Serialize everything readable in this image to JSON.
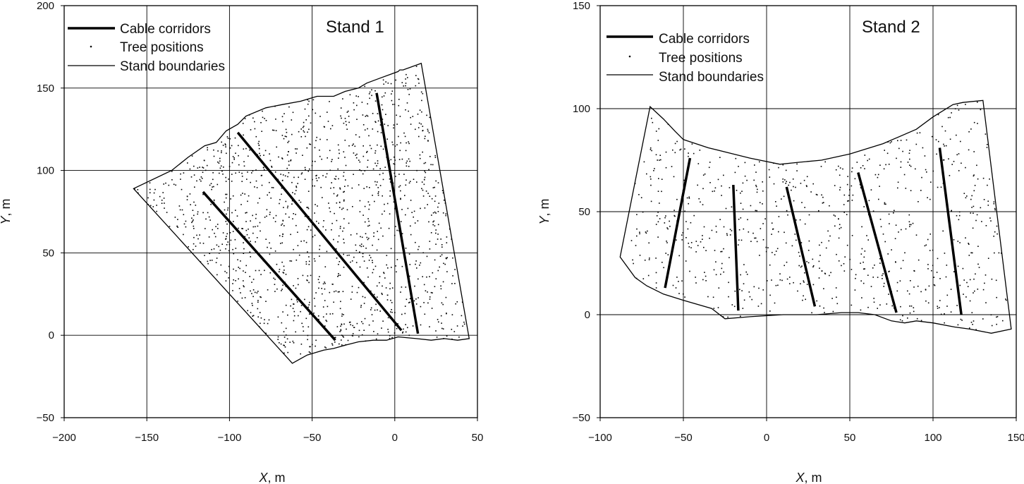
{
  "chart_data": [
    {
      "type": "scatter",
      "title": "Stand 1",
      "xlabel": "X, m",
      "ylabel": "Y, m",
      "xlim": [
        -200,
        50
      ],
      "ylim": [
        -50,
        200
      ],
      "xticks": [
        -200,
        -150,
        -100,
        -50,
        0,
        50
      ],
      "yticks": [
        -50,
        0,
        50,
        100,
        150,
        200
      ],
      "grid": true,
      "legend_position": "top-left",
      "legend": [
        "Cable corridors",
        "Tree positions",
        "Stand boundaries"
      ],
      "series": [
        {
          "name": "Stand boundaries",
          "kind": "polygon",
          "points": [
            [
              -158,
              89
            ],
            [
              -135,
              100
            ],
            [
              -125,
              108
            ],
            [
              -115,
              115
            ],
            [
              -108,
              117
            ],
            [
              -102,
              124
            ],
            [
              -95,
              128
            ],
            [
              -90,
              133
            ],
            [
              -78,
              138
            ],
            [
              -68,
              140
            ],
            [
              -57,
              142
            ],
            [
              -47,
              145
            ],
            [
              -37,
              145
            ],
            [
              -30,
              148
            ],
            [
              -22,
              150
            ],
            [
              -17,
              153
            ],
            [
              -9,
              156
            ],
            [
              2,
              160
            ],
            [
              3,
              161
            ],
            [
              5,
              161
            ],
            [
              16,
              165
            ],
            [
              45,
              -2
            ],
            [
              38,
              -3
            ],
            [
              30,
              -2
            ],
            [
              22,
              -3
            ],
            [
              13,
              -2
            ],
            [
              2,
              -1
            ],
            [
              -5,
              -3
            ],
            [
              -13,
              -3
            ],
            [
              -22,
              -4
            ],
            [
              -30,
              -6
            ],
            [
              -37,
              -8
            ],
            [
              -43,
              -9
            ],
            [
              -53,
              -12
            ],
            [
              -62,
              -17
            ]
          ]
        },
        {
          "name": "Cable corridors",
          "kind": "segments",
          "segments": [
            [
              [
                -116,
                87
              ],
              [
                -36,
                -3
              ]
            ],
            [
              [
                -95,
                123
              ],
              [
                4,
                3
              ]
            ],
            [
              [
                -11,
                147
              ],
              [
                14,
                1
              ]
            ]
          ]
        },
        {
          "name": "Tree positions",
          "kind": "points",
          "count": 1400,
          "region": "distributed throughout the stand boundary"
        }
      ]
    },
    {
      "type": "scatter",
      "title": "Stand 2",
      "xlabel": "X, m",
      "ylabel": "Y, m",
      "xlim": [
        -100,
        150
      ],
      "ylim": [
        -50,
        150
      ],
      "xticks": [
        -100,
        -50,
        0,
        50,
        100,
        150
      ],
      "yticks": [
        -50,
        0,
        50,
        100,
        150
      ],
      "grid": true,
      "legend_position": "top-left",
      "legend": [
        "Cable corridors",
        "Tree positions",
        "Stand boundaries"
      ],
      "series": [
        {
          "name": "Stand boundaries",
          "kind": "polygon",
          "points": [
            [
              -88,
              28
            ],
            [
              -79,
              18
            ],
            [
              -72,
              14
            ],
            [
              -62,
              10
            ],
            [
              -50,
              7
            ],
            [
              -33,
              3
            ],
            [
              -25,
              -2
            ],
            [
              -10,
              -1
            ],
            [
              10,
              0
            ],
            [
              30,
              0
            ],
            [
              45,
              1
            ],
            [
              55,
              1
            ],
            [
              65,
              0
            ],
            [
              75,
              -3
            ],
            [
              83,
              -4
            ],
            [
              90,
              -3
            ],
            [
              100,
              -4
            ],
            [
              113,
              -6
            ],
            [
              122,
              -7
            ],
            [
              135,
              -9
            ],
            [
              147,
              -7
            ],
            [
              130,
              104
            ],
            [
              118,
              103
            ],
            [
              112,
              102
            ],
            [
              100,
              96
            ],
            [
              90,
              90
            ],
            [
              70,
              83
            ],
            [
              50,
              78
            ],
            [
              33,
              75
            ],
            [
              20,
              74
            ],
            [
              8,
              73
            ],
            [
              -10,
              76
            ],
            [
              -20,
              78
            ],
            [
              -35,
              81
            ],
            [
              -50,
              85
            ],
            [
              -55,
              89
            ],
            [
              -62,
              95
            ],
            [
              -70,
              101
            ]
          ]
        },
        {
          "name": "Cable corridors",
          "kind": "segments",
          "segments": [
            [
              [
                -61,
                13
              ],
              [
                -46,
                76
              ]
            ],
            [
              [
                -20,
                63
              ],
              [
                -17,
                2
              ]
            ],
            [
              [
                12,
                62
              ],
              [
                29,
                4
              ]
            ],
            [
              [
                55,
                69
              ],
              [
                78,
                1
              ]
            ],
            [
              [
                104,
                81
              ],
              [
                117,
                0
              ]
            ]
          ]
        },
        {
          "name": "Tree positions",
          "kind": "points",
          "count": 800,
          "region": "distributed throughout the stand boundary"
        }
      ]
    }
  ]
}
